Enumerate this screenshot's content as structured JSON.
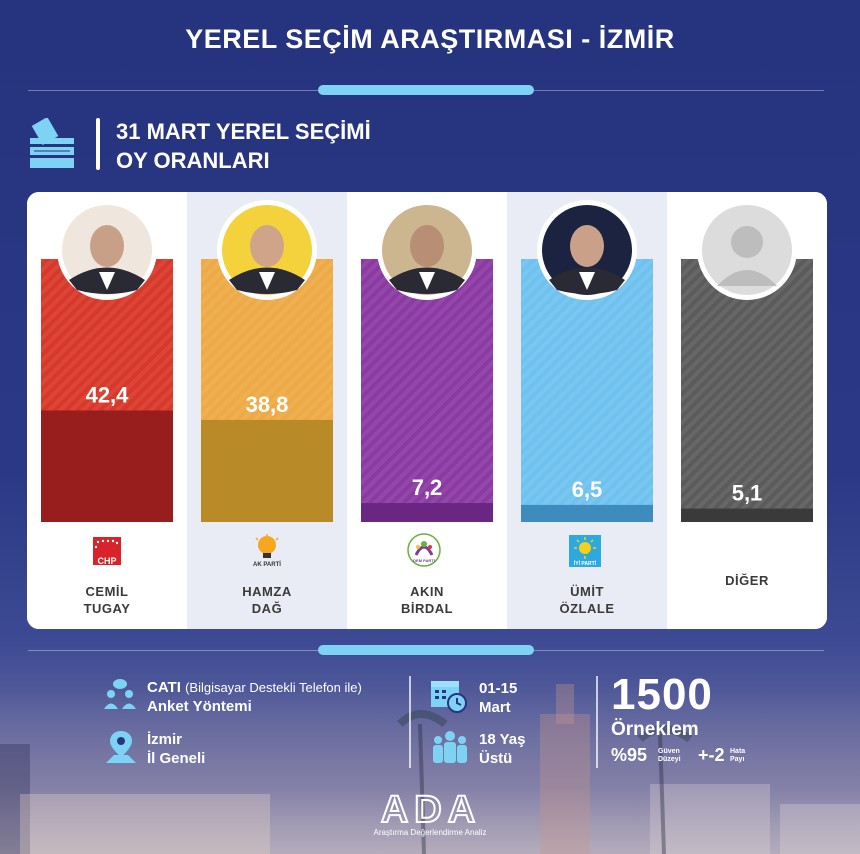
{
  "header": {
    "title": "YEREL SEÇİM ARAŞTIRMASI - İZMİR",
    "subtitle_line1": "31 MART YEREL SEÇİMİ",
    "subtitle_line2": "OY ORANLARI"
  },
  "chart_data": {
    "type": "bar",
    "categories": [
      "CEMİL TUGAY",
      "HAMZA DAĞ",
      "AKIN BİRDAL",
      "ÜMİT ÖZLALE",
      "DİĞER"
    ],
    "values": [
      42.4,
      38.8,
      7.2,
      6.5,
      5.1
    ],
    "value_labels": [
      "42,4",
      "38,8",
      "7,2",
      "6,5",
      "5,1"
    ],
    "ylim": [
      0,
      100
    ],
    "colors_light": [
      "#d8382a",
      "#edaa45",
      "#8b3aa3",
      "#6fc2ef",
      "#5b5b5b"
    ],
    "colors_dark": [
      "#981e1e",
      "#b98a28",
      "#6b2582",
      "#3d8cbd",
      "#3a3a3a"
    ],
    "title": "",
    "xlabel": "",
    "ylabel": ""
  },
  "candidates": [
    {
      "name_line1": "CEMİL",
      "name_line2": "TUGAY",
      "party_logo": "CHP",
      "party_icon": "chp-logo-icon"
    },
    {
      "name_line1": "HAMZA",
      "name_line2": "DAĞ",
      "party_logo": "AK PARTİ",
      "party_icon": "ak-parti-bulb-icon"
    },
    {
      "name_line1": "AKIN",
      "name_line2": "BİRDAL",
      "party_logo": "DEM PARTİ",
      "party_icon": "dem-parti-logo-icon"
    },
    {
      "name_line1": "ÜMİT",
      "name_line2": "ÖZLALE",
      "party_logo": "İYİ PARTİ",
      "party_icon": "iyi-parti-sun-icon"
    },
    {
      "name_line1": "DİĞER",
      "name_line2": "",
      "party_logo": "",
      "party_icon": ""
    }
  ],
  "info": {
    "method_bold": "CATI",
    "method_light": "(Bilgisayar Destekli Telefon ile)",
    "method_line2": "Anket Yöntemi",
    "area_line1": "İzmir",
    "area_line2": "İl Geneli",
    "date_line1": "01-15",
    "date_line2": "Mart",
    "age_line1": "18 Yaş",
    "age_line2": "Üstü",
    "sample_size": "1500",
    "sample_label": "Örneklem",
    "confidence": "%95",
    "confidence_label_1": "Güven",
    "confidence_label_2": "Düzeyi",
    "margin": "+-2",
    "margin_label_1": "Hata",
    "margin_label_2": "Payı"
  },
  "brand": {
    "logo_text": "ADA",
    "tagline": "Araştırma Değerlendirme Analiz"
  }
}
